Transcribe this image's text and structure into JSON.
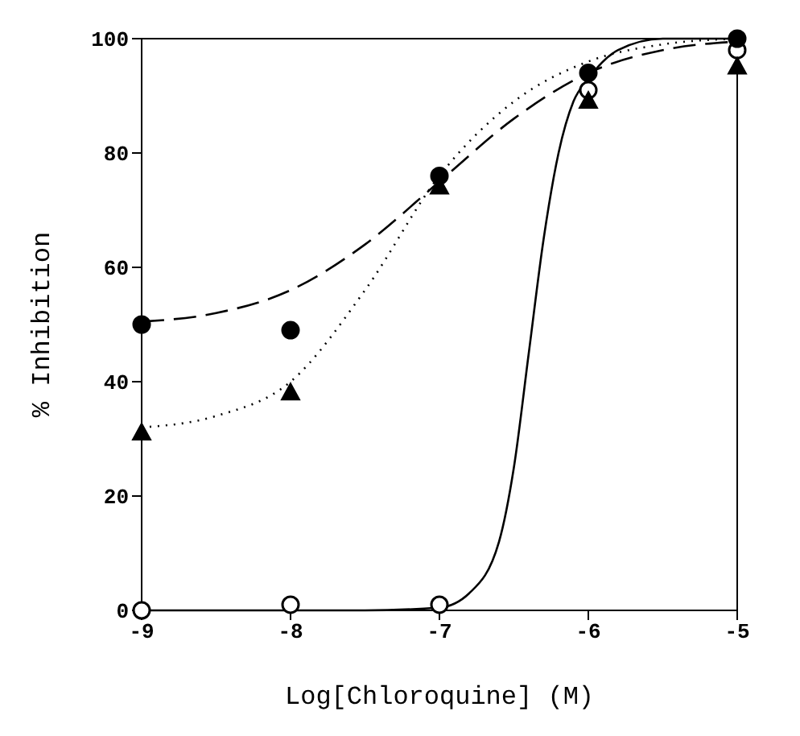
{
  "chart_data": {
    "type": "scatter",
    "xlabel": "Log[Chloroquine] (M)",
    "ylabel": "% Inhibition",
    "x": [
      -9,
      -8,
      -7,
      -6,
      -5
    ],
    "series": [
      {
        "type": "scatter",
        "color": "#000000",
        "marker": "circle",
        "values": [
          50,
          49,
          76,
          94,
          100
        ]
      },
      {
        "type": "scatter",
        "color": "#000000",
        "marker": "triangle",
        "values": [
          31,
          38,
          74,
          89,
          95
        ]
      },
      {
        "type": "scatter",
        "color": "#ffffff",
        "marker": "circle",
        "values": [
          0,
          1,
          1,
          91,
          98
        ]
      },
      {
        "type": "line",
        "color": "#000000",
        "line_style": "dashed",
        "marker": "none",
        "x": [
          -9,
          -8.5,
          -8,
          -7.5,
          -7,
          -6.5,
          -6,
          -5.5,
          -5
        ],
        "values": [
          50.5,
          52,
          56,
          64,
          75,
          86,
          94,
          98,
          99.5
        ]
      },
      {
        "type": "line",
        "color": "#000000",
        "line_style": "dotted",
        "marker": "none",
        "x": [
          -9,
          -8.5,
          -8,
          -7.5,
          -7,
          -6.5,
          -6,
          -5.5,
          -5
        ],
        "values": [
          32,
          34,
          40,
          56,
          76,
          89,
          96,
          99,
          100
        ]
      },
      {
        "type": "line",
        "color": "#000000",
        "line_style": "solid",
        "marker": "none",
        "x": [
          -9,
          -7.5,
          -7,
          -6.8,
          -6.6,
          -6.5,
          -6.4,
          -6.3,
          -6.2,
          -6.1,
          -6,
          -5.8,
          -5.5,
          -5
        ],
        "values": [
          0,
          0,
          0.5,
          3,
          12,
          25,
          45,
          65,
          80,
          89,
          93,
          98,
          100,
          100
        ]
      }
    ],
    "xlim": [
      -9,
      -5
    ],
    "xticks": [
      -9,
      -8,
      -7,
      -6,
      -5
    ],
    "ylim": [
      0,
      100
    ],
    "yticks": [
      0,
      20,
      40,
      60,
      80,
      100
    ],
    "legend": false
  }
}
